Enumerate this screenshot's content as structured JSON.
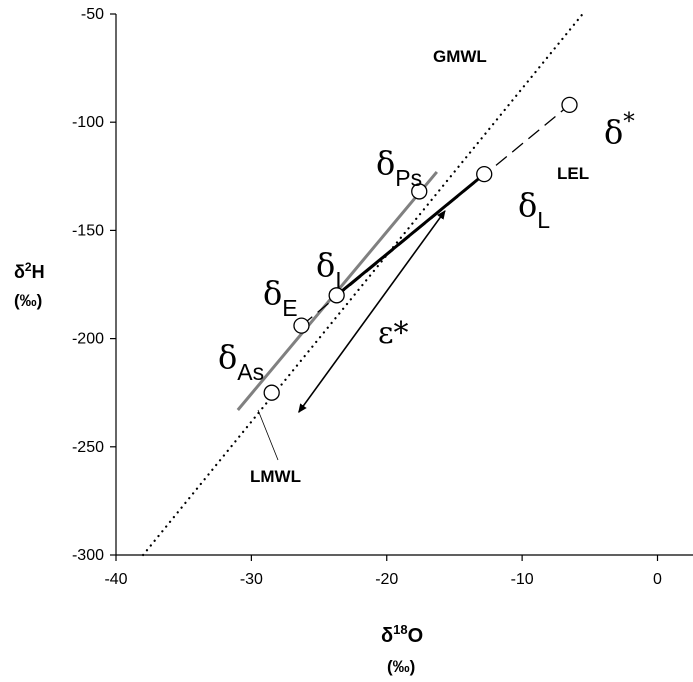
{
  "chart_data": {
    "type": "scatter",
    "xlim": [
      -40,
      0
    ],
    "ylim": [
      -300,
      -50
    ],
    "x_ticks": [
      -40,
      -30,
      -20,
      -10,
      0
    ],
    "y_ticks": [
      -50,
      -100,
      -150,
      -200,
      -250,
      -300
    ],
    "x_tick_labels": [
      "-40",
      "-30",
      "-20",
      "-10",
      "0"
    ],
    "y_tick_labels": [
      "-50",
      "-100",
      "-150",
      "-200",
      "-250",
      "-300"
    ],
    "xlabel": {
      "symbol": "δ",
      "sup": "18",
      "main": "O",
      "unit": "(‰)"
    },
    "ylabel": {
      "symbol": "δ",
      "sup": "2",
      "main": "H",
      "unit": "(‰)"
    },
    "grid": false,
    "lines": [
      {
        "name": "GMWL",
        "style": "dotted",
        "color": "#000000",
        "x": [
          -38.0,
          -5.4
        ],
        "y": [
          -300.0,
          -49.0
        ]
      },
      {
        "name": "LMWL",
        "style": "solid",
        "color": "#808080",
        "x": [
          -31.0,
          -16.3
        ],
        "y": [
          -233.0,
          -123.0
        ]
      },
      {
        "name": "LEL",
        "style": "dashed",
        "color": "#000000",
        "x": [
          -26.3,
          -6.5
        ],
        "y": [
          -194.0,
          -92.0
        ]
      },
      {
        "name": "",
        "style": "solid-bold",
        "color": "#000000",
        "x": [
          -23.7,
          -12.8
        ],
        "y": [
          -180.0,
          -124.0
        ]
      }
    ],
    "points": [
      {
        "sub": "As",
        "sup": "",
        "x": -28.5,
        "y": -225.0
      },
      {
        "sub": "E",
        "sup": "",
        "x": -26.3,
        "y": -194.0
      },
      {
        "sub": "I",
        "sup": "",
        "x": -23.7,
        "y": -180.0
      },
      {
        "sub": "Ps",
        "sup": "",
        "x": -17.6,
        "y": -132.0
      },
      {
        "sub": "L",
        "sup": "",
        "x": -12.8,
        "y": -124.0
      },
      {
        "sub": "",
        "sup": "*",
        "x": -6.5,
        "y": -92.0
      }
    ],
    "arrow": {
      "label": "ε*",
      "from": [
        -15.7,
        -141.0
      ],
      "to": [
        -26.5,
        -234.0
      ]
    },
    "callouts": {
      "gmwl": "GMWL",
      "lel": "LEL",
      "lmwl": "LMWL"
    }
  }
}
